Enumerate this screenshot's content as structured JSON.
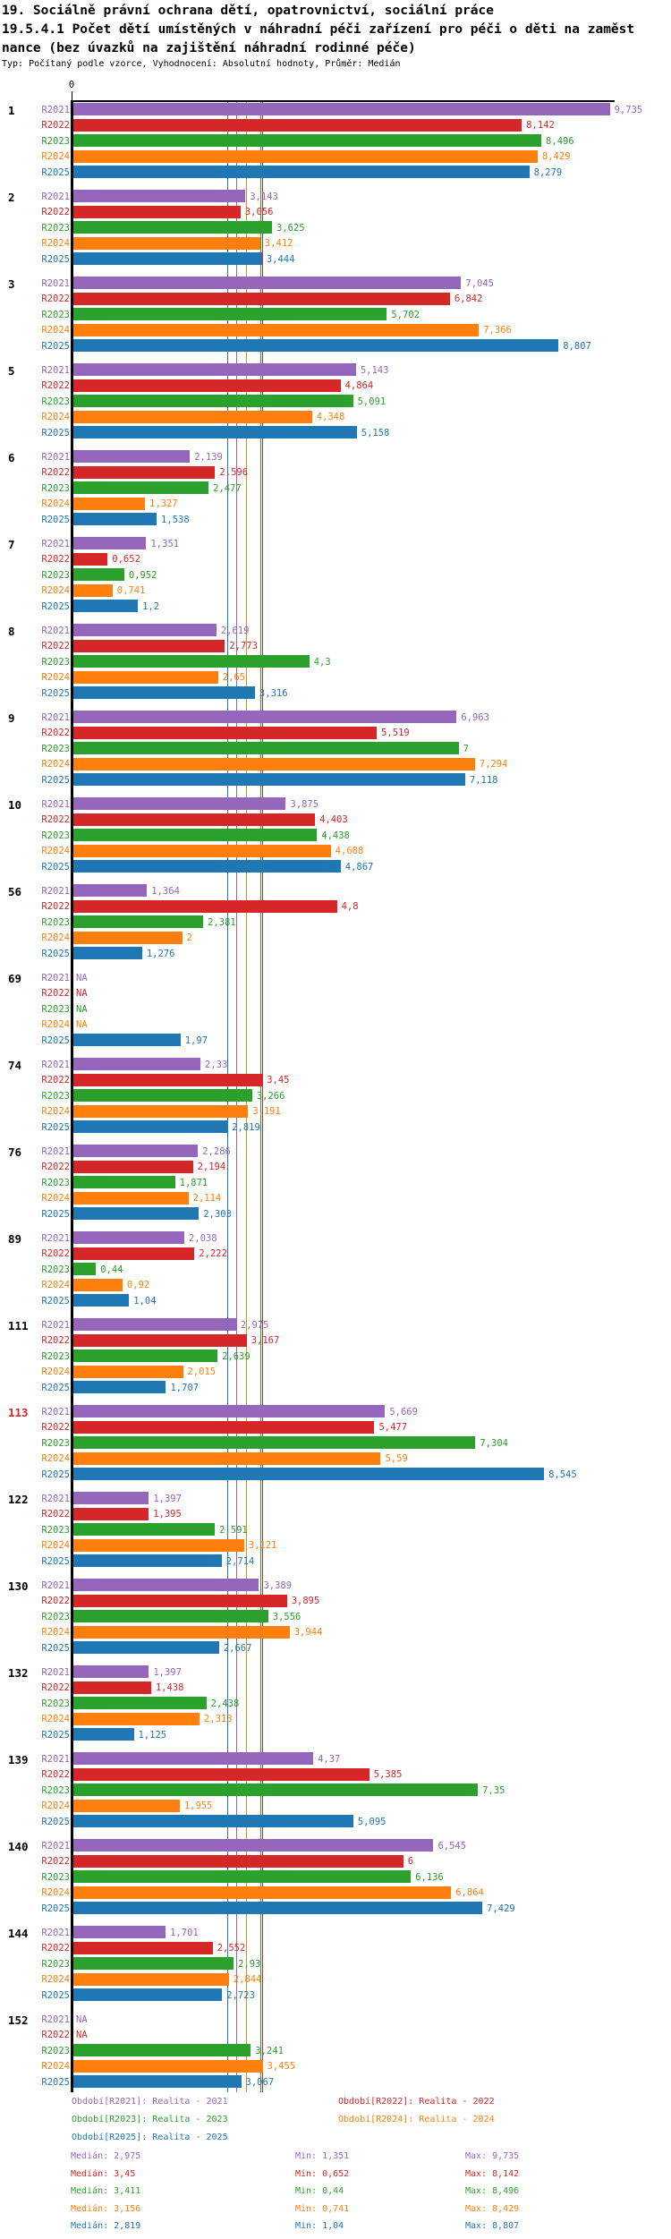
{
  "header": {
    "title_lines": [
      "19. Sociálně právní ochrana dětí, opatrovnictví, sociální práce",
      "19.5.4.1 Počet dětí umístěných v náhradní péči zařízení pro péči o děti na zaměst",
      "nance (bez úvazků na zajištění náhradní rodinné péče)"
    ],
    "subtitle": "Typ: Počítaný podle vzorce, Vyhodnocení: Absolutní hodnoty, Průměr: Medián"
  },
  "chart_data": {
    "type": "bar",
    "orientation": "horizontal",
    "value_format": "decimal-comma",
    "na_label": "NA",
    "axis": {
      "origin_label": "0",
      "min": 0
    },
    "highlight_color": "#d62728",
    "series": [
      {
        "id": "R2021",
        "label": "R2021",
        "color": "#9467bd",
        "legend": "Období[R2021]: Realita - 2021",
        "median": "2,975",
        "min": "1,351",
        "max": "9,735"
      },
      {
        "id": "R2022",
        "label": "R2022",
        "color": "#d62728",
        "legend": "Období[R2022]: Realita - 2022",
        "median": "3,45",
        "min": "0,652",
        "max": "8,142"
      },
      {
        "id": "R2023",
        "label": "R2023",
        "color": "#2ca02c",
        "legend": "Období[R2023]: Realita - 2023",
        "median": "3,411",
        "min": "0,44",
        "max": "8,496"
      },
      {
        "id": "R2024",
        "label": "R2024",
        "color": "#ff7f0e",
        "legend": "Období[R2024]: Realita - 2024",
        "median": "3,156",
        "min": "0,741",
        "max": "8,429"
      },
      {
        "id": "R2025",
        "label": "R2025",
        "color": "#1f77b4",
        "legend": "Období[R2025]: Realita - 2025",
        "median": "2,819",
        "min": "1,04",
        "max": "8,807"
      }
    ],
    "groups": [
      {
        "id": "1",
        "highlight": false,
        "values": [
          "9,735",
          "8,142",
          "8,496",
          "8,429",
          "8,279"
        ]
      },
      {
        "id": "2",
        "highlight": false,
        "values": [
          "3,143",
          "3,056",
          "3,625",
          "3,412",
          "3,444"
        ]
      },
      {
        "id": "3",
        "highlight": false,
        "values": [
          "7,045",
          "6,842",
          "5,702",
          "7,366",
          "8,807"
        ]
      },
      {
        "id": "5",
        "highlight": false,
        "values": [
          "5,143",
          "4,864",
          "5,091",
          "4,348",
          "5,158"
        ]
      },
      {
        "id": "6",
        "highlight": false,
        "values": [
          "2,139",
          "2,596",
          "2,477",
          "1,327",
          "1,538"
        ]
      },
      {
        "id": "7",
        "highlight": false,
        "values": [
          "1,351",
          "0,652",
          "0,952",
          "0,741",
          "1,2"
        ]
      },
      {
        "id": "8",
        "highlight": false,
        "values": [
          "2,619",
          "2,773",
          "4,3",
          "2,65",
          "3,316"
        ]
      },
      {
        "id": "9",
        "highlight": false,
        "values": [
          "6,963",
          "5,519",
          "7",
          "7,294",
          "7,118"
        ]
      },
      {
        "id": "10",
        "highlight": false,
        "values": [
          "3,875",
          "4,403",
          "4,438",
          "4,688",
          "4,867"
        ]
      },
      {
        "id": "56",
        "highlight": false,
        "values": [
          "1,364",
          "4,8",
          "2,381",
          "2",
          "1,276"
        ]
      },
      {
        "id": "69",
        "highlight": false,
        "values": [
          "NA",
          "NA",
          "NA",
          "NA",
          "1,97"
        ]
      },
      {
        "id": "74",
        "highlight": false,
        "values": [
          "2,33",
          "3,45",
          "3,266",
          "3,191",
          "2,819"
        ]
      },
      {
        "id": "76",
        "highlight": false,
        "values": [
          "2,286",
          "2,194",
          "1,871",
          "2,114",
          "2,303"
        ]
      },
      {
        "id": "89",
        "highlight": false,
        "values": [
          "2,038",
          "2,222",
          "0,44",
          "0,92",
          "1,04"
        ]
      },
      {
        "id": "111",
        "highlight": false,
        "values": [
          "2,975",
          "3,167",
          "2,639",
          "2,015",
          "1,707"
        ]
      },
      {
        "id": "113",
        "highlight": true,
        "values": [
          "5,669",
          "5,477",
          "7,304",
          "5,59",
          "8,545"
        ]
      },
      {
        "id": "122",
        "highlight": false,
        "values": [
          "1,397",
          "1,395",
          "2,591",
          "3,121",
          "2,714"
        ]
      },
      {
        "id": "130",
        "highlight": false,
        "values": [
          "3,389",
          "3,895",
          "3,556",
          "3,944",
          "2,667"
        ]
      },
      {
        "id": "132",
        "highlight": false,
        "values": [
          "1,397",
          "1,438",
          "2,438",
          "2,313",
          "1,125"
        ]
      },
      {
        "id": "139",
        "highlight": false,
        "values": [
          "4,37",
          "5,385",
          "7,35",
          "1,955",
          "5,095"
        ]
      },
      {
        "id": "140",
        "highlight": false,
        "values": [
          "6,545",
          "6",
          "6,136",
          "6,864",
          "7,429"
        ]
      },
      {
        "id": "144",
        "highlight": false,
        "values": [
          "1,701",
          "2,552",
          "2,93",
          "2,844",
          "2,723"
        ]
      },
      {
        "id": "152",
        "highlight": false,
        "values": [
          "NA",
          "NA",
          "3,241",
          "3,455",
          "3,067"
        ]
      }
    ]
  },
  "stats_labels": {
    "median_prefix": "Medián: ",
    "min_prefix": "Min: ",
    "max_prefix": "Max: "
  }
}
